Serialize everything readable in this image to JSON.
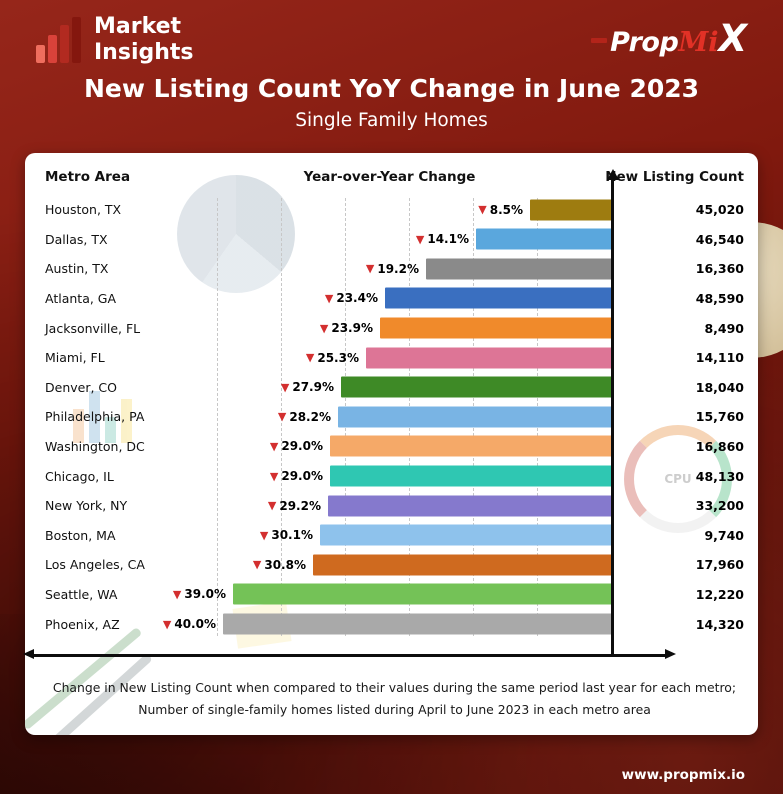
{
  "header": {
    "brand": {
      "line1": "Market",
      "line2": "Insights"
    },
    "propmix": {
      "prop": "Prop",
      "mi": "Mi",
      "x": "X"
    }
  },
  "title": "New Listing Count YoY Change in June 2023",
  "subtitle": "Single Family Homes",
  "footer": {
    "line1": "Change in New Listing Count when compared to their values during the same period last year for each metro;",
    "line2": "Number of single-family homes listed during April to June 2023 in each metro area"
  },
  "website": "www.propmix.io",
  "colors": {
    "brand_red": "#e23126",
    "marker_red": "#d32f2f",
    "axis_black": "#0d0d0d",
    "card_white": "#ffffff"
  },
  "chart_data": {
    "type": "bar",
    "orientation": "horizontal",
    "title": "New Listing Count YoY Change in June 2023",
    "subtitle": "Single Family Homes",
    "columns": [
      "Metro Area",
      "Year-over-Year Change",
      "New Listing Count"
    ],
    "categories": [
      "Houston, TX",
      "Dallas, TX",
      "Austin, TX",
      "Atlanta, GA",
      "Jacksonville, FL",
      "Miami, FL",
      "Denver, CO",
      "Philadelphia, PA",
      "Washington, DC",
      "Chicago, IL",
      "New York, NY",
      "Boston, MA",
      "Los Angeles, CA",
      "Seattle, WA",
      "Phoenix, AZ"
    ],
    "series": [
      {
        "name": "Year-over-Year Change (%)",
        "values": [
          -8.5,
          -14.1,
          -19.2,
          -23.4,
          -23.9,
          -25.3,
          -27.9,
          -28.2,
          -29.0,
          -29.0,
          -29.2,
          -30.1,
          -30.8,
          -39.0,
          -40.0
        ]
      },
      {
        "name": "New Listing Count",
        "values": [
          45020,
          46540,
          16360,
          48590,
          8490,
          14110,
          18040,
          15760,
          16860,
          48130,
          33200,
          9740,
          17960,
          12220,
          14320
        ]
      }
    ],
    "bar_colors": [
      "#9e7c10",
      "#5aa7dd",
      "#8a8a8a",
      "#3a6fc0",
      "#f08a2b",
      "#dd7596",
      "#3e8a26",
      "#79b4e4",
      "#f5a968",
      "#2fc7b2",
      "#8579cd",
      "#8ec2ec",
      "#cf6a1f",
      "#74c257",
      "#a9a9a9"
    ],
    "marker_glyph": "▼",
    "marker_color": "#d32f2f",
    "bar_alignment": "right-aligned to vertical axis",
    "grid": "dashed vertical gridlines",
    "xlim_pct": [
      0,
      41
    ]
  }
}
